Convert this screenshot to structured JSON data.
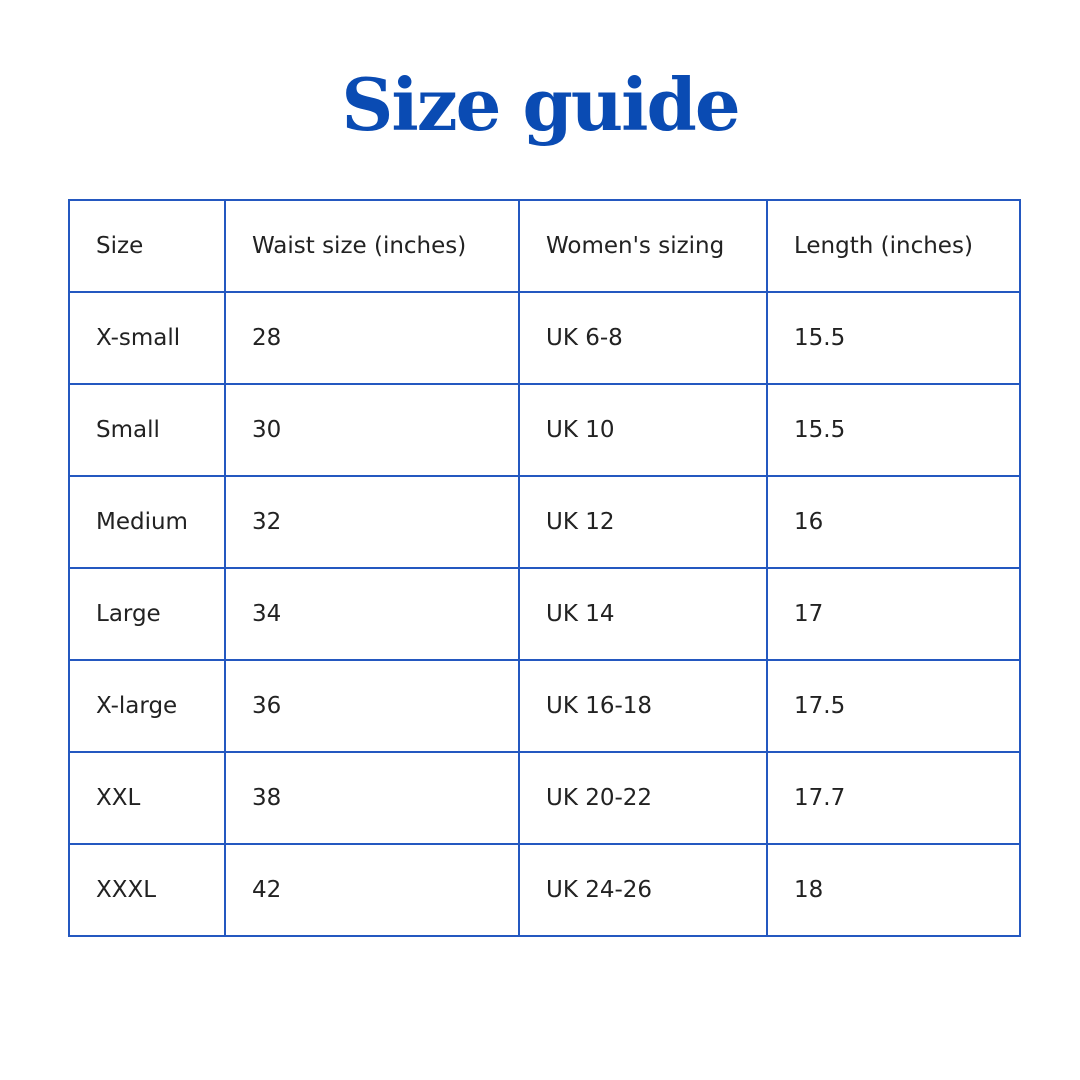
{
  "title": "Size guide",
  "headers": [
    "Size",
    "Waist size (inches)",
    "Women's sizing",
    "Length (inches)"
  ],
  "rows": [
    [
      "X-small",
      "28",
      "UK 6-8",
      "15.5"
    ],
    [
      "Small",
      "30",
      "UK 10",
      "15.5"
    ],
    [
      "Medium",
      "32",
      "UK 12",
      "16"
    ],
    [
      "Large",
      "34",
      "UK 14",
      "17"
    ],
    [
      "X-large",
      "36",
      "UK 16-18",
      "17.5"
    ],
    [
      "XXL",
      "38",
      "UK 20-22",
      "17.7"
    ],
    [
      "XXXL",
      "42",
      "UK 24-26",
      "18"
    ]
  ]
}
